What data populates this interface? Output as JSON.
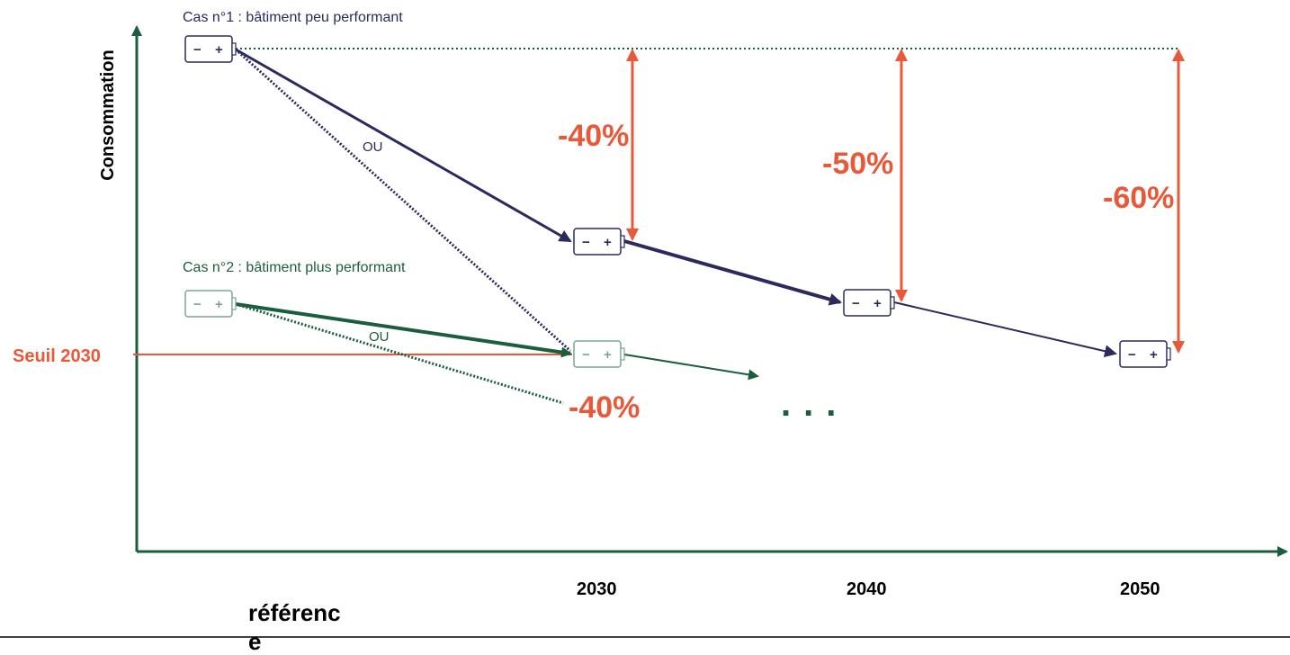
{
  "axes": {
    "y_label": "Consommation",
    "x_label": "référenc e",
    "years": [
      "2030",
      "2040",
      "2050"
    ]
  },
  "cases": {
    "case1": "Cas n°1 : bâtiment peu performant",
    "case2": "Cas n°2 : bâtiment plus performant"
  },
  "reductions": {
    "r2030": "-40%",
    "r2040": "-50%",
    "r2050": "-60%",
    "r_case2": "-40%"
  },
  "alternatives": {
    "ou1": "OU",
    "ou2": "OU"
  },
  "threshold": {
    "label": "Seuil 2030"
  },
  "ellipsis": "...",
  "battery": {
    "minus": "−",
    "plus": "+"
  },
  "colors": {
    "case1": "#2b2a5e",
    "case2": "#1a5e3e",
    "case2_light": "#7aa890",
    "reduction": "#e8593a",
    "axis": "#1a5e3e"
  }
}
